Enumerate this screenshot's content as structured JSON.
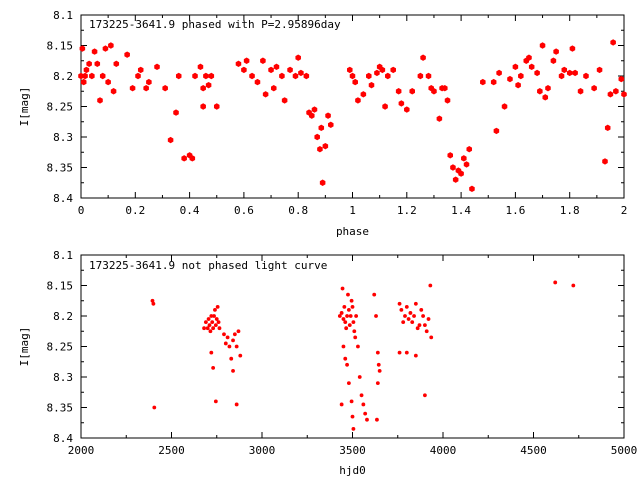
{
  "chart_data": [
    {
      "type": "scatter",
      "title": "173225-3641.9 phased with P=2.95896day",
      "xlabel": "phase",
      "ylabel": "I[mag]",
      "xlim": [
        0,
        2
      ],
      "ylim": [
        8.1,
        8.4
      ],
      "y_inverted": true,
      "grid": false,
      "marker_color": "#ff0000",
      "marker": "filled-hexagon",
      "xticks": [
        "0",
        "0.2",
        "0.4",
        "0.6",
        "0.8",
        "1",
        "1.2",
        "1.4",
        "1.6",
        "1.8",
        "2"
      ],
      "yticks": [
        "8.1",
        "8.15",
        "8.2",
        "8.25",
        "8.3",
        "8.35",
        "8.4"
      ],
      "series": [
        {
          "x": [
            0.0,
            0.005,
            0.01,
            0.015,
            0.02,
            0.03,
            0.04,
            0.05,
            0.06,
            0.07,
            0.08,
            0.09,
            0.1,
            0.11,
            0.12,
            0.13,
            0.17,
            0.19,
            0.21,
            0.22,
            0.24,
            0.25,
            0.28,
            0.31,
            0.33,
            0.35,
            0.36,
            0.38,
            0.4,
            0.41,
            0.42,
            0.44,
            0.45,
            0.45,
            0.46,
            0.47,
            0.48,
            0.5,
            0.58,
            0.6,
            0.61,
            0.63,
            0.65,
            0.67,
            0.68,
            0.7,
            0.71,
            0.72,
            0.74,
            0.75,
            0.77,
            0.79,
            0.8,
            0.81,
            0.83,
            0.84,
            0.85,
            0.86,
            0.87,
            0.88,
            0.885,
            0.89,
            0.9,
            0.91,
            0.92,
            0.99,
            1.0,
            1.01,
            1.02,
            1.04,
            1.06,
            1.07,
            1.09,
            1.1,
            1.11,
            1.12,
            1.13,
            1.15,
            1.17,
            1.18,
            1.2,
            1.22,
            1.25,
            1.26,
            1.28,
            1.29,
            1.3,
            1.32,
            1.33,
            1.34,
            1.35,
            1.36,
            1.37,
            1.38,
            1.39,
            1.4,
            1.41,
            1.42,
            1.43,
            1.44,
            1.48,
            1.52,
            1.53,
            1.54,
            1.56,
            1.58,
            1.6,
            1.61,
            1.62,
            1.64,
            1.65,
            1.66,
            1.68,
            1.69,
            1.7,
            1.71,
            1.72,
            1.74,
            1.75,
            1.77,
            1.78,
            1.8,
            1.81,
            1.82,
            1.84,
            1.86,
            1.89,
            1.91,
            1.93,
            1.94,
            1.95,
            1.96,
            1.97,
            1.99,
            2.0
          ],
          "y": [
            8.2,
            8.155,
            8.21,
            8.2,
            8.19,
            8.18,
            8.2,
            8.16,
            8.18,
            8.24,
            8.2,
            8.155,
            8.21,
            8.15,
            8.225,
            8.18,
            8.165,
            8.22,
            8.2,
            8.19,
            8.22,
            8.21,
            8.185,
            8.22,
            8.305,
            8.26,
            8.2,
            8.335,
            8.33,
            8.335,
            8.2,
            8.185,
            8.22,
            8.25,
            8.2,
            8.215,
            8.2,
            8.25,
            8.18,
            8.19,
            8.175,
            8.2,
            8.21,
            8.175,
            8.23,
            8.19,
            8.22,
            8.185,
            8.2,
            8.24,
            8.19,
            8.2,
            8.17,
            8.195,
            8.2,
            8.26,
            8.265,
            8.255,
            8.3,
            8.32,
            8.285,
            8.375,
            8.315,
            8.265,
            8.28,
            8.19,
            8.2,
            8.21,
            8.24,
            8.23,
            8.2,
            8.215,
            8.195,
            8.185,
            8.19,
            8.25,
            8.2,
            8.19,
            8.225,
            8.245,
            8.255,
            8.225,
            8.2,
            8.17,
            8.2,
            8.22,
            8.225,
            8.27,
            8.22,
            8.22,
            8.24,
            8.33,
            8.35,
            8.37,
            8.355,
            8.36,
            8.335,
            8.345,
            8.32,
            8.385,
            8.21,
            8.21,
            8.29,
            8.195,
            8.25,
            8.205,
            8.185,
            8.215,
            8.2,
            8.175,
            8.17,
            8.185,
            8.195,
            8.225,
            8.15,
            8.235,
            8.22,
            8.175,
            8.16,
            8.2,
            8.19,
            8.195,
            8.155,
            8.195,
            8.225,
            8.2,
            8.22,
            8.19,
            8.34,
            8.285,
            8.23,
            8.145,
            8.225,
            8.205,
            8.23
          ]
        }
      ]
    },
    {
      "type": "scatter",
      "title": "173225-3641.9 not phased light curve",
      "xlabel": "hjd0",
      "ylabel": "I[mag]",
      "xlim": [
        2000,
        5000
      ],
      "ylim": [
        8.1,
        8.4
      ],
      "y_inverted": true,
      "grid": false,
      "marker_color": "#ff0000",
      "marker": "small-dot",
      "xticks": [
        "2000",
        "2500",
        "3000",
        "3500",
        "4000",
        "4500",
        "5000"
      ],
      "yticks": [
        "8.1",
        "8.15",
        "8.2",
        "8.25",
        "8.3",
        "8.35",
        "8.4"
      ],
      "series": [
        {
          "x": [
            2395,
            2400,
            2405,
            2680,
            2690,
            2700,
            2705,
            2710,
            2715,
            2720,
            2725,
            2730,
            2735,
            2740,
            2745,
            2750,
            2755,
            2760,
            2765,
            2720,
            2730,
            2745,
            2790,
            2800,
            2810,
            2820,
            2830,
            2840,
            2850,
            2860,
            2870,
            2880,
            2840,
            2860,
            3430,
            3440,
            3445,
            3450,
            3455,
            3460,
            3465,
            3470,
            3475,
            3480,
            3485,
            3490,
            3495,
            3500,
            3505,
            3510,
            3515,
            3520,
            3530,
            3540,
            3550,
            3560,
            3570,
            3580,
            3450,
            3470,
            3480,
            3495,
            3500,
            3505,
            3440,
            3460,
            3620,
            3630,
            3640,
            3645,
            3650,
            3640,
            3635,
            3760,
            3770,
            3780,
            3790,
            3800,
            3810,
            3820,
            3830,
            3840,
            3850,
            3860,
            3870,
            3880,
            3890,
            3900,
            3910,
            3920,
            3930,
            3935,
            3760,
            3800,
            3850,
            3900,
            4620,
            4720
          ],
          "y": [
            8.175,
            8.18,
            8.35,
            8.22,
            8.21,
            8.22,
            8.205,
            8.215,
            8.225,
            8.2,
            8.21,
            8.22,
            8.2,
            8.19,
            8.215,
            8.205,
            8.185,
            8.21,
            8.22,
            8.26,
            8.285,
            8.34,
            8.23,
            8.245,
            8.235,
            8.25,
            8.27,
            8.24,
            8.23,
            8.25,
            8.225,
            8.265,
            8.29,
            8.345,
            8.2,
            8.195,
            8.155,
            8.205,
            8.185,
            8.21,
            8.22,
            8.2,
            8.165,
            8.19,
            8.215,
            8.2,
            8.175,
            8.185,
            8.21,
            8.225,
            8.235,
            8.2,
            8.25,
            8.3,
            8.33,
            8.345,
            8.36,
            8.37,
            8.25,
            8.28,
            8.31,
            8.34,
            8.365,
            8.385,
            8.345,
            8.27,
            8.165,
            8.2,
            8.26,
            8.28,
            8.29,
            8.31,
            8.37,
            8.18,
            8.19,
            8.21,
            8.2,
            8.185,
            8.205,
            8.195,
            8.21,
            8.2,
            8.18,
            8.22,
            8.215,
            8.19,
            8.2,
            8.215,
            8.225,
            8.205,
            8.15,
            8.235,
            8.26,
            8.26,
            8.265,
            8.33,
            8.145,
            8.15
          ]
        }
      ]
    }
  ]
}
